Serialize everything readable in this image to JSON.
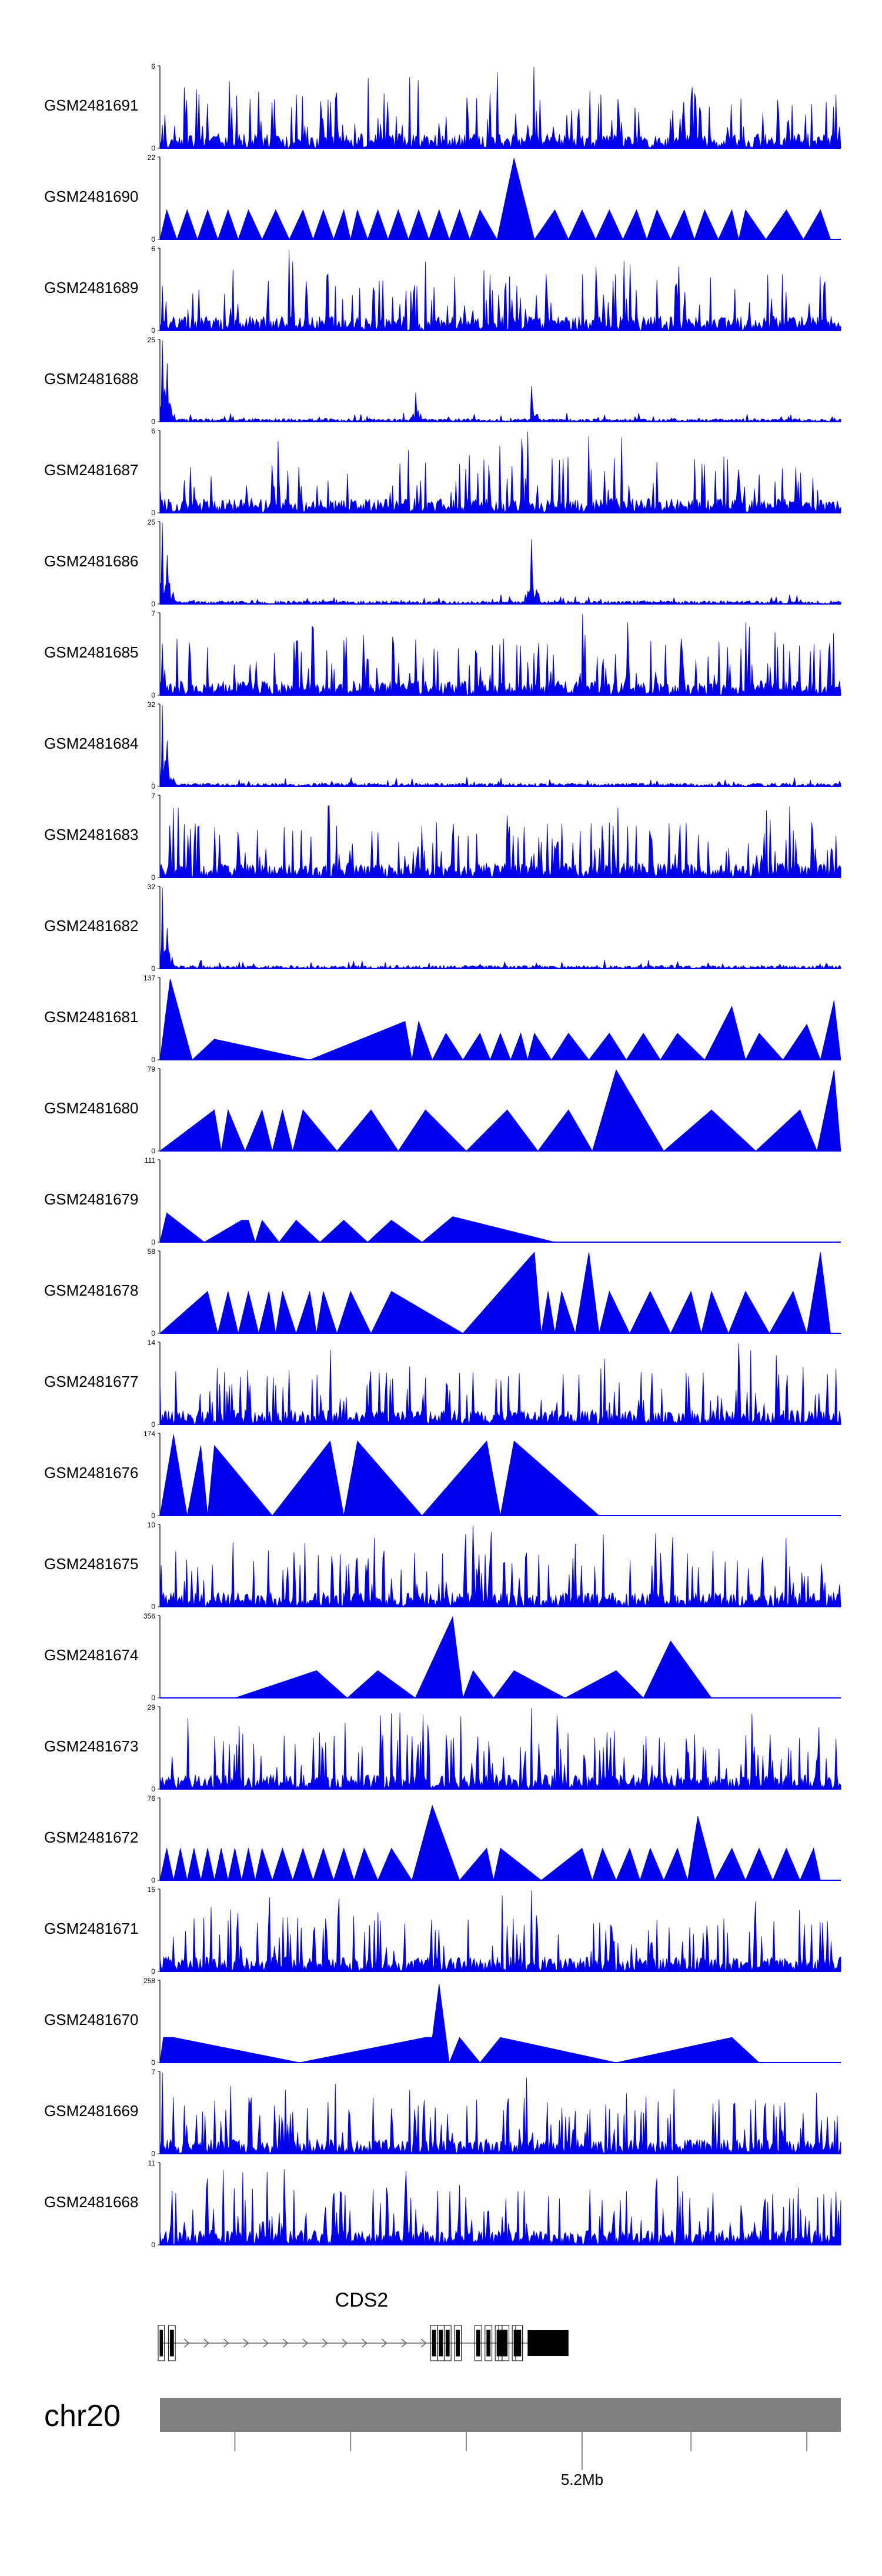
{
  "chart_data": {
    "type": "area",
    "track_color": "#0000ee",
    "chromosome_bar_color": "#808080",
    "x_range": [
      5018000,
      5222000
    ],
    "tracks": [
      {
        "name": "GSM2481691",
        "ymax": 6,
        "style": "dense",
        "seed": 11,
        "spikes": [
          [
            0.55,
            6
          ]
        ]
      },
      {
        "name": "GSM2481690",
        "ymax": 22,
        "style": "triangles",
        "seed": 12,
        "peaks": [
          [
            0.01,
            8
          ],
          [
            0.04,
            8
          ],
          [
            0.07,
            8
          ],
          [
            0.1,
            8
          ],
          [
            0.13,
            8
          ],
          [
            0.17,
            8
          ],
          [
            0.21,
            8
          ],
          [
            0.24,
            8
          ],
          [
            0.27,
            8
          ],
          [
            0.29,
            8
          ],
          [
            0.32,
            8
          ],
          [
            0.35,
            8
          ],
          [
            0.38,
            8
          ],
          [
            0.41,
            8
          ],
          [
            0.44,
            8
          ],
          [
            0.47,
            8
          ],
          [
            0.52,
            22
          ],
          [
            0.58,
            8
          ],
          [
            0.62,
            8
          ],
          [
            0.66,
            8
          ],
          [
            0.7,
            8
          ],
          [
            0.73,
            8
          ],
          [
            0.77,
            8
          ],
          [
            0.8,
            8
          ],
          [
            0.84,
            8
          ],
          [
            0.86,
            8
          ],
          [
            0.92,
            8
          ],
          [
            0.97,
            8
          ]
        ]
      },
      {
        "name": "GSM2481689",
        "ymax": 6,
        "style": "dense",
        "seed": 13,
        "spikes": [
          [
            0.19,
            6
          ]
        ]
      },
      {
        "name": "GSM2481688",
        "ymax": 25,
        "style": "sparse",
        "seed": 14,
        "spikes": [
          [
            0.003,
            25
          ],
          [
            0.01,
            18
          ],
          [
            0.375,
            9
          ],
          [
            0.545,
            11
          ]
        ]
      },
      {
        "name": "GSM2481687",
        "ymax": 6,
        "style": "dense",
        "seed": 15,
        "spikes": [
          [
            0.54,
            6
          ]
        ]
      },
      {
        "name": "GSM2481686",
        "ymax": 25,
        "style": "sparse",
        "seed": 16,
        "spikes": [
          [
            0.003,
            25
          ],
          [
            0.01,
            15
          ],
          [
            0.545,
            20
          ]
        ]
      },
      {
        "name": "GSM2481685",
        "ymax": 7,
        "style": "dense",
        "seed": 17,
        "spikes": [
          [
            0.62,
            7
          ]
        ]
      },
      {
        "name": "GSM2481684",
        "ymax": 32,
        "style": "sparse",
        "seed": 18,
        "spikes": [
          [
            0.003,
            32
          ],
          [
            0.01,
            18
          ]
        ]
      },
      {
        "name": "GSM2481683",
        "ymax": 7,
        "style": "dense",
        "seed": 19,
        "spikes": [
          [
            0.02,
            6
          ]
        ]
      },
      {
        "name": "GSM2481682",
        "ymax": 32,
        "style": "sparse",
        "seed": 20,
        "spikes": [
          [
            0.003,
            32
          ],
          [
            0.01,
            16
          ]
        ]
      },
      {
        "name": "GSM2481681",
        "ymax": 137,
        "style": "triangles",
        "seed": 21,
        "peaks": [
          [
            0.015,
            137
          ],
          [
            0.08,
            35
          ],
          [
            0.36,
            65
          ],
          [
            0.38,
            65
          ],
          [
            0.42,
            45
          ],
          [
            0.47,
            45
          ],
          [
            0.5,
            45
          ],
          [
            0.53,
            45
          ],
          [
            0.55,
            45
          ],
          [
            0.6,
            45
          ],
          [
            0.66,
            45
          ],
          [
            0.71,
            45
          ],
          [
            0.76,
            45
          ],
          [
            0.84,
            90
          ],
          [
            0.88,
            45
          ],
          [
            0.95,
            60
          ],
          [
            0.99,
            100
          ]
        ]
      },
      {
        "name": "GSM2481680",
        "ymax": 79,
        "style": "triangles",
        "seed": 22,
        "peaks": [
          [
            0.08,
            40
          ],
          [
            0.1,
            40
          ],
          [
            0.15,
            40
          ],
          [
            0.18,
            40
          ],
          [
            0.21,
            40
          ],
          [
            0.31,
            40
          ],
          [
            0.39,
            40
          ],
          [
            0.51,
            40
          ],
          [
            0.6,
            40
          ],
          [
            0.67,
            79
          ],
          [
            0.81,
            40
          ],
          [
            0.94,
            40
          ],
          [
            0.99,
            79
          ]
        ]
      },
      {
        "name": "GSM2481679",
        "ymax": 111,
        "style": "triangles",
        "seed": 23,
        "peaks": [
          [
            0.01,
            40
          ],
          [
            0.12,
            30
          ],
          [
            0.13,
            30
          ],
          [
            0.15,
            30
          ],
          [
            0.2,
            30
          ],
          [
            0.27,
            30
          ],
          [
            0.34,
            30
          ],
          [
            0.43,
            35
          ]
        ],
        "tail_end": 0.73
      },
      {
        "name": "GSM2481678",
        "ymax": 58,
        "style": "triangles",
        "seed": 24,
        "peaks": [
          [
            0.07,
            30
          ],
          [
            0.1,
            30
          ],
          [
            0.13,
            30
          ],
          [
            0.16,
            30
          ],
          [
            0.18,
            30
          ],
          [
            0.22,
            30
          ],
          [
            0.24,
            30
          ],
          [
            0.28,
            30
          ],
          [
            0.34,
            30
          ],
          [
            0.55,
            58
          ],
          [
            0.57,
            30
          ],
          [
            0.59,
            30
          ],
          [
            0.63,
            58
          ],
          [
            0.66,
            30
          ],
          [
            0.72,
            30
          ],
          [
            0.78,
            30
          ],
          [
            0.81,
            30
          ],
          [
            0.86,
            30
          ],
          [
            0.93,
            30
          ],
          [
            0.97,
            58
          ]
        ]
      },
      {
        "name": "GSM2481677",
        "ymax": 14,
        "style": "dense",
        "seed": 25,
        "spikes": [
          [
            0.85,
            14
          ],
          [
            0.39,
            8
          ]
        ]
      },
      {
        "name": "GSM2481676",
        "ymax": 174,
        "style": "triangles",
        "seed": 26,
        "peaks": [
          [
            0.02,
            174
          ],
          [
            0.06,
            150
          ],
          [
            0.08,
            150
          ],
          [
            0.25,
            160
          ],
          [
            0.29,
            160
          ],
          [
            0.48,
            160
          ],
          [
            0.52,
            160
          ]
        ],
        "tail_end": 0.77
      },
      {
        "name": "GSM2481675",
        "ymax": 10,
        "style": "dense",
        "seed": 27,
        "spikes": [
          [
            0.46,
            10
          ]
        ]
      },
      {
        "name": "GSM2481674",
        "ymax": 356,
        "style": "triangles",
        "seed": 28,
        "peaks": [
          [
            0.23,
            120
          ],
          [
            0.32,
            120
          ],
          [
            0.43,
            356
          ],
          [
            0.46,
            120
          ],
          [
            0.52,
            120
          ],
          [
            0.67,
            120
          ],
          [
            0.75,
            250
          ]
        ],
        "start": 0.11,
        "tail_end": 0.87
      },
      {
        "name": "GSM2481673",
        "ymax": 29,
        "style": "dense",
        "seed": 29,
        "spikes": [
          [
            0.545,
            29
          ],
          [
            0.38,
            16
          ]
        ]
      },
      {
        "name": "GSM2481672",
        "ymax": 76,
        "style": "triangles",
        "seed": 30,
        "peaks": [
          [
            0.01,
            30
          ],
          [
            0.03,
            30
          ],
          [
            0.05,
            30
          ],
          [
            0.07,
            30
          ],
          [
            0.09,
            30
          ],
          [
            0.11,
            30
          ],
          [
            0.13,
            30
          ],
          [
            0.15,
            30
          ],
          [
            0.18,
            30
          ],
          [
            0.21,
            30
          ],
          [
            0.24,
            30
          ],
          [
            0.27,
            30
          ],
          [
            0.3,
            30
          ],
          [
            0.34,
            30
          ],
          [
            0.4,
            70
          ],
          [
            0.48,
            30
          ],
          [
            0.5,
            30
          ],
          [
            0.62,
            30
          ],
          [
            0.65,
            30
          ],
          [
            0.69,
            30
          ],
          [
            0.72,
            30
          ],
          [
            0.76,
            30
          ],
          [
            0.79,
            60
          ],
          [
            0.84,
            30
          ],
          [
            0.88,
            30
          ],
          [
            0.92,
            30
          ],
          [
            0.96,
            30
          ]
        ],
        "tail_end": 0.97
      },
      {
        "name": "GSM2481671",
        "ymax": 15,
        "style": "dense",
        "seed": 31,
        "spikes": [
          [
            0.545,
            15
          ],
          [
            0.24,
            8
          ]
        ]
      },
      {
        "name": "GSM2481670",
        "ymax": 258,
        "style": "triangles",
        "seed": 32,
        "peaks": [
          [
            0.005,
            80
          ],
          [
            0.01,
            80
          ],
          [
            0.02,
            80
          ],
          [
            0.39,
            80
          ],
          [
            0.4,
            80
          ],
          [
            0.41,
            250
          ],
          [
            0.44,
            80
          ],
          [
            0.5,
            80
          ],
          [
            0.84,
            80
          ]
        ],
        "tail_end": 0.92
      },
      {
        "name": "GSM2481669",
        "ymax": 7,
        "style": "dense",
        "seed": 33,
        "spikes": [
          [
            0.003,
            7
          ]
        ]
      },
      {
        "name": "GSM2481668",
        "ymax": 11,
        "style": "dense",
        "seed": 34,
        "spikes": [
          [
            0.07,
            9
          ],
          [
            0.73,
            9
          ]
        ]
      }
    ],
    "gene": {
      "name": "CDS2",
      "exons": [
        [
          0.0,
          0.004
        ],
        [
          0.015,
          0.02
        ],
        [
          0.4,
          0.405
        ],
        [
          0.41,
          0.415
        ],
        [
          0.42,
          0.425
        ],
        [
          0.435,
          0.44
        ],
        [
          0.465,
          0.47
        ],
        [
          0.48,
          0.485
        ],
        [
          0.495,
          0.5
        ],
        [
          0.505,
          0.51
        ],
        [
          0.5,
          0.51
        ],
        [
          0.525,
          0.53
        ],
        [
          0.52,
          0.53
        ],
        [
          0.54,
          0.6
        ]
      ],
      "intron_start": 0.0,
      "intron_end": 0.6
    },
    "axis": {
      "chromosome": "chr20",
      "tick_fractions": [
        0.11,
        0.28,
        0.45,
        0.62,
        0.78,
        0.95
      ],
      "labelled_tick": {
        "label": "5.2Mb",
        "fraction": 0.62
      }
    }
  }
}
